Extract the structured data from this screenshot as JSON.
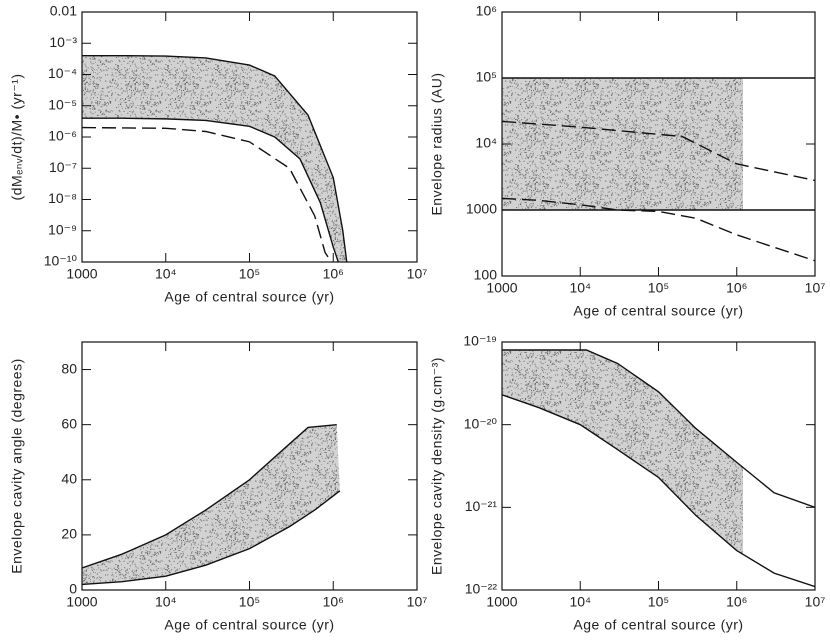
{
  "chart_data": [
    {
      "type": "line",
      "xlabel": "Age of central source (yr)",
      "ylabel": "(dMₑₙᵥ/dt)/M• (yr⁻¹)",
      "xlog": true,
      "ylog": true,
      "xlim": [
        1000,
        10000000
      ],
      "ylim": [
        1e-10,
        0.01
      ],
      "xticks": [
        1000,
        {
          "value": 10000,
          "label": "10⁴"
        },
        {
          "value": 100000,
          "label": "10⁵"
        },
        {
          "value": 1000000,
          "label": "10⁶"
        },
        {
          "value": 10000000,
          "label": "10⁷"
        }
      ],
      "yticks": [
        {
          "value": 1e-10,
          "label": "10⁻¹⁰"
        },
        {
          "value": 1e-09,
          "label": "10⁻⁹"
        },
        {
          "value": 1e-08,
          "label": "10⁻⁸"
        },
        {
          "value": 1e-07,
          "label": "10⁻⁷"
        },
        {
          "value": 1e-06,
          "label": "10⁻⁶"
        },
        {
          "value": 1e-05,
          "label": "10⁻⁵"
        },
        {
          "value": 0.0001,
          "label": "10⁻⁴"
        },
        {
          "value": 0.001,
          "label": "10⁻³"
        },
        0.01
      ],
      "fill_between": [
        0,
        1
      ],
      "series": [
        {
          "color": "#111111",
          "dash": false,
          "x": [
            1000,
            3000,
            10000,
            30000,
            100000,
            200000,
            500000,
            1000000,
            1300000,
            1450000
          ],
          "values": [
            0.0004,
            0.0004,
            0.00039,
            0.00034,
            0.0002,
            9e-05,
            5e-06,
            5e-08,
            1e-09,
            1e-10
          ]
        },
        {
          "color": "#111111",
          "dash": false,
          "x": [
            1000,
            3000,
            10000,
            30000,
            100000,
            200000,
            400000,
            700000,
            1000000,
            1150000
          ],
          "values": [
            4e-06,
            4e-06,
            3.8e-06,
            3.4e-06,
            2.2e-06,
            1e-06,
            2e-07,
            8e-09,
            3e-10,
            1e-10
          ]
        },
        {
          "color": "#111111",
          "dash": true,
          "x": [
            1000,
            10000,
            30000,
            100000,
            300000,
            600000,
            800000,
            950000
          ],
          "values": [
            2e-06,
            1.9e-06,
            1.5e-06,
            7e-07,
            1e-07,
            3e-09,
            2e-10,
            1e-10
          ]
        }
      ]
    },
    {
      "type": "line",
      "xlabel": "Age of central source (yr)",
      "ylabel": "Envelope radius (AU)",
      "xlog": true,
      "ylog": true,
      "xlim": [
        1000,
        10000000
      ],
      "ylim": [
        100,
        1000000
      ],
      "xticks": [
        1000,
        {
          "value": 10000,
          "label": "10⁴"
        },
        {
          "value": 100000,
          "label": "10⁵"
        },
        {
          "value": 1000000,
          "label": "10⁶"
        },
        {
          "value": 10000000,
          "label": "10⁷"
        }
      ],
      "yticks": [
        100,
        1000,
        {
          "value": 10000,
          "label": "10⁴"
        },
        {
          "value": 100000,
          "label": "10⁵"
        },
        {
          "value": 1000000,
          "label": "10⁶"
        }
      ],
      "fill_between": [
        0,
        1
      ],
      "fill_xmax": 1200000,
      "series": [
        {
          "color": "#111111",
          "dash": false,
          "x": [
            1000,
            10000000
          ],
          "values": [
            100000,
            100000
          ]
        },
        {
          "color": "#111111",
          "dash": false,
          "x": [
            1000,
            10000000
          ],
          "values": [
            1000,
            1000
          ]
        },
        {
          "color": "#111111",
          "dash": true,
          "x": [
            1000,
            10000,
            100000,
            200000,
            1000000,
            10000000
          ],
          "values": [
            22000,
            18000,
            14000,
            13000,
            5000,
            2800
          ]
        },
        {
          "color": "#111111",
          "dash": true,
          "x": [
            1000,
            3000,
            10000,
            30000,
            100000,
            300000,
            1000000,
            10000000
          ],
          "values": [
            1500,
            1400,
            1200,
            1000,
            950,
            750,
            420,
            170
          ]
        }
      ]
    },
    {
      "type": "line",
      "xlabel": "Age of central source (yr)",
      "ylabel": "Envelope cavity angle (degrees)",
      "xlog": true,
      "ylog": false,
      "xlim": [
        1000,
        10000000
      ],
      "ylim": [
        0,
        90
      ],
      "xticks": [
        1000,
        {
          "value": 10000,
          "label": "10⁴"
        },
        {
          "value": 100000,
          "label": "10⁵"
        },
        {
          "value": 1000000,
          "label": "10⁶"
        },
        {
          "value": 10000000,
          "label": "10⁷"
        }
      ],
      "yticks": [
        0,
        20,
        40,
        60,
        80
      ],
      "fill_between": [
        0,
        1
      ],
      "series": [
        {
          "color": "#111111",
          "dash": false,
          "x": [
            1000,
            3000,
            10000,
            30000,
            100000,
            300000,
            500000,
            1100000
          ],
          "values": [
            8,
            13,
            20,
            29,
            40,
            53,
            59,
            60
          ]
        },
        {
          "color": "#111111",
          "dash": false,
          "x": [
            1000,
            3000,
            10000,
            30000,
            100000,
            300000,
            600000,
            1200000
          ],
          "values": [
            2,
            3,
            5,
            9,
            15,
            23,
            29,
            36
          ]
        }
      ]
    },
    {
      "type": "line",
      "xlabel": "Age of central source (yr)",
      "ylabel": "Envelope cavity density (g.cm⁻³)",
      "xlog": true,
      "ylog": true,
      "xlim": [
        1000,
        10000000
      ],
      "ylim": [
        1e-22,
        1e-19
      ],
      "xticks": [
        1000,
        {
          "value": 10000,
          "label": "10⁴"
        },
        {
          "value": 100000,
          "label": "10⁵"
        },
        {
          "value": 1000000,
          "label": "10⁶"
        },
        {
          "value": 10000000,
          "label": "10⁷"
        }
      ],
      "yticks": [
        {
          "value": 1e-22,
          "label": "10⁻²²"
        },
        {
          "value": 1e-21,
          "label": "10⁻²¹"
        },
        {
          "value": 1e-20,
          "label": "10⁻²⁰"
        },
        {
          "value": 1e-19,
          "label": "10⁻¹⁹"
        }
      ],
      "fill_between": [
        0,
        1
      ],
      "fill_xmax": 1200000,
      "series": [
        {
          "color": "#111111",
          "dash": false,
          "x": [
            1000,
            12000,
            30000,
            100000,
            300000,
            1000000,
            3000000,
            10000000
          ],
          "values": [
            8e-20,
            8e-20,
            5.5e-20,
            2.5e-20,
            9e-21,
            3.5e-21,
            1.5e-21,
            1e-21
          ]
        },
        {
          "color": "#111111",
          "dash": false,
          "x": [
            1000,
            3000,
            10000,
            30000,
            100000,
            300000,
            1000000,
            3000000,
            10000000
          ],
          "values": [
            2.3e-20,
            1.6e-20,
            1e-20,
            5e-21,
            2.3e-21,
            8e-22,
            3e-22,
            1.6e-22,
            1.1e-22
          ]
        }
      ]
    }
  ]
}
